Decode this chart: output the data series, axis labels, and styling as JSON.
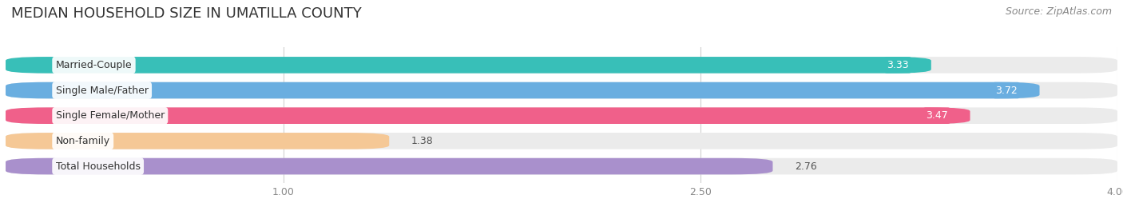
{
  "title": "MEDIAN HOUSEHOLD SIZE IN UMATILLA COUNTY",
  "source": "Source: ZipAtlas.com",
  "categories": [
    "Married-Couple",
    "Single Male/Father",
    "Single Female/Mother",
    "Non-family",
    "Total Households"
  ],
  "values": [
    3.33,
    3.72,
    3.47,
    1.38,
    2.76
  ],
  "bar_colors": [
    "#38bfb8",
    "#6aaee0",
    "#f0608a",
    "#f5c896",
    "#a990cc"
  ],
  "bar_bg_colors": [
    "#ebebeb",
    "#ebebeb",
    "#ebebeb",
    "#ebebeb",
    "#ebebeb"
  ],
  "value_colors_inside": [
    "white",
    "white",
    "white",
    "black",
    "black"
  ],
  "xlim_min": 0,
  "xlim_max": 4.0,
  "xticks": [
    1.0,
    2.5,
    4.0
  ],
  "title_fontsize": 13,
  "label_fontsize": 9,
  "value_fontsize": 9,
  "source_fontsize": 9,
  "bar_height": 0.65,
  "background_color": "#ffffff",
  "grid_color": "#d0d0d0"
}
